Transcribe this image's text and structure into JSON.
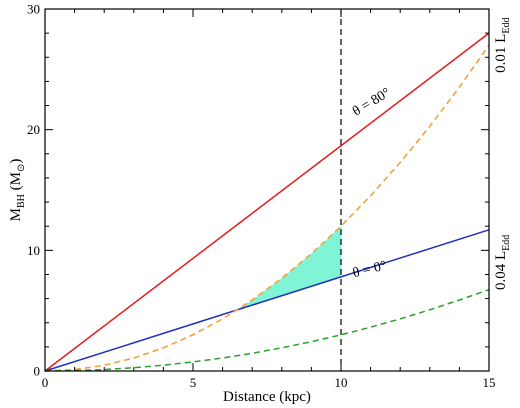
{
  "chart_data": {
    "type": "line",
    "xlabel": "Distance (kpc)",
    "ylabel": {
      "main": "M",
      "sub": "BH",
      "unit": "(M",
      "unit_sub": "⊙",
      "close": ")"
    },
    "xlim": [
      0,
      15
    ],
    "ylim": [
      0,
      30
    ],
    "xticks": [
      "0",
      "5",
      "10",
      "15"
    ],
    "yticks": [
      "0",
      "10",
      "20",
      "30"
    ],
    "grid": false,
    "vline": {
      "x": 10,
      "style": "dashed",
      "color": "#000000"
    },
    "series": [
      {
        "key": "theta80",
        "style": "solid",
        "color": "#e41a1c",
        "x": [
          0,
          15
        ],
        "y": [
          0,
          28
        ]
      },
      {
        "key": "theta0",
        "style": "solid",
        "color": "#1f2fbf",
        "x": [
          0,
          15
        ],
        "y": [
          0,
          11.7
        ]
      },
      {
        "key": "orange_dashed",
        "style": "dashed",
        "color": "#f39c34",
        "x": [
          0,
          1,
          2,
          3,
          4,
          5,
          6,
          7,
          8,
          9,
          10,
          11,
          12,
          13,
          14,
          15
        ],
        "y": [
          0,
          0.12,
          0.48,
          1.08,
          1.92,
          3.0,
          4.32,
          5.88,
          7.68,
          9.72,
          12.0,
          14.52,
          17.28,
          20.28,
          23.52,
          27.0
        ]
      },
      {
        "key": "green_dashed",
        "style": "dashed",
        "color": "#2ca02c",
        "x": [
          0,
          1,
          2,
          3,
          4,
          5,
          6,
          7,
          8,
          9,
          10,
          11,
          12,
          13,
          14,
          15
        ],
        "y": [
          0,
          0.03,
          0.12,
          0.27,
          0.48,
          0.75,
          1.08,
          1.47,
          1.92,
          2.43,
          3.0,
          3.63,
          4.32,
          5.07,
          5.88,
          6.75
        ]
      }
    ],
    "shaded_region": {
      "color": "#7ff5d6",
      "between": [
        "orange_dashed",
        "theta0"
      ],
      "x_from": 6.5,
      "x_to": 10
    },
    "annotations": [
      {
        "text": "θ = 80°",
        "x": 11.1,
        "y": 22.0,
        "rotate": -31
      },
      {
        "text": "θ = 0°",
        "x": 11.0,
        "y": 8.1,
        "rotate": -14
      }
    ],
    "right_labels": [
      {
        "main": "0.01 L",
        "sub": "Edd",
        "y": 27.0
      },
      {
        "main": "0.04 L",
        "sub": "Edd",
        "y": 9.0
      }
    ]
  }
}
